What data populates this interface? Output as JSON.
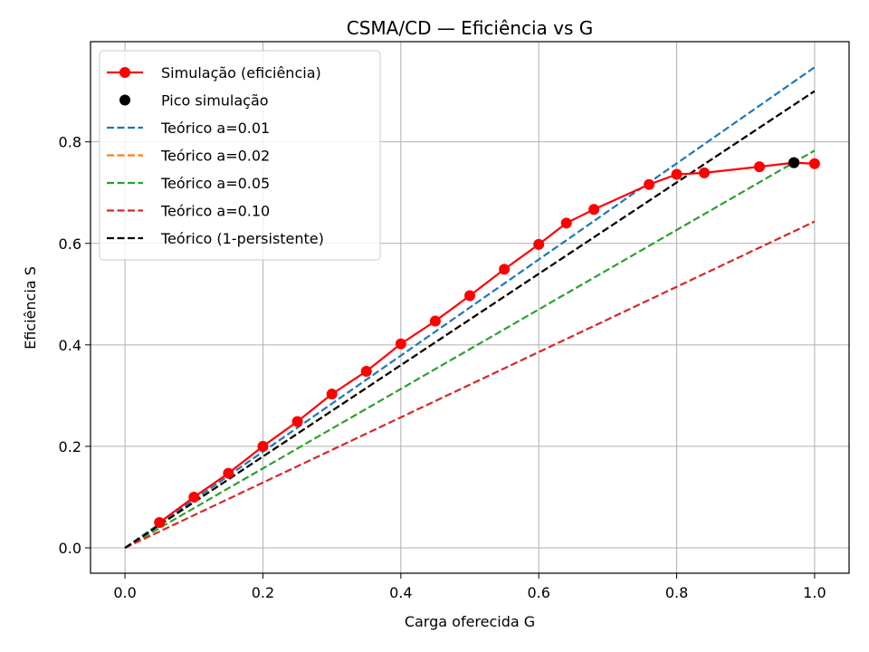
{
  "chart_data": {
    "type": "line",
    "title": "CSMA/CD — Eficiência vs G",
    "xlabel": "Carga oferecida G",
    "ylabel": "Eficiência S",
    "xlim": [
      -0.05,
      1.05
    ],
    "ylim": [
      -0.05,
      0.9975
    ],
    "xticks": [
      0.0,
      0.2,
      0.4,
      0.6,
      0.8,
      1.0
    ],
    "xtick_labels": [
      "0.0",
      "0.2",
      "0.4",
      "0.6",
      "0.8",
      "1.0"
    ],
    "yticks": [
      0.0,
      0.2,
      0.4,
      0.6,
      0.8
    ],
    "ytick_labels": [
      "0.0",
      "0.2",
      "0.4",
      "0.6",
      "0.8"
    ],
    "grid": true,
    "legend_position": "top-left",
    "series": [
      {
        "name": "Simulação (eficiência)",
        "style": "solid-marker",
        "color": "#ff0000",
        "x": [
          0.05,
          0.1,
          0.15,
          0.2,
          0.25,
          0.3,
          0.35,
          0.4,
          0.45,
          0.5,
          0.55,
          0.6,
          0.64,
          0.68,
          0.76,
          0.8,
          0.84,
          0.92,
          0.97,
          1.0
        ],
        "y": [
          0.05,
          0.1,
          0.147,
          0.2,
          0.249,
          0.303,
          0.348,
          0.402,
          0.447,
          0.497,
          0.549,
          0.598,
          0.64,
          0.667,
          0.716,
          0.736,
          0.739,
          0.751,
          0.759,
          0.757
        ]
      },
      {
        "name": "Pico simulação",
        "style": "point",
        "color": "#000000",
        "x": [
          0.97
        ],
        "y": [
          0.759
        ]
      },
      {
        "name": "Teórico a=0.01",
        "style": "dashed",
        "color": "#1f77b4",
        "x": [
          0.0,
          1.0
        ],
        "y": [
          0.0,
          0.947
        ]
      },
      {
        "name": "Teórico a=0.02",
        "style": "dashed",
        "color": "#ff7f0e",
        "x": [
          0.0,
          1.0
        ],
        "y": [
          0.0,
          0.9
        ]
      },
      {
        "name": "Teórico a=0.05",
        "style": "dashed",
        "color": "#2ca02c",
        "x": [
          0.0,
          1.0
        ],
        "y": [
          0.0,
          0.783
        ]
      },
      {
        "name": "Teórico a=0.10",
        "style": "dashed",
        "color": "#d62728",
        "x": [
          0.0,
          1.0
        ],
        "y": [
          0.0,
          0.643
        ]
      },
      {
        "name": "Teórico (1-persistente)",
        "style": "dashed",
        "color": "#000000",
        "x": [
          0.0,
          1.0
        ],
        "y": [
          0.0,
          0.9
        ]
      }
    ]
  }
}
